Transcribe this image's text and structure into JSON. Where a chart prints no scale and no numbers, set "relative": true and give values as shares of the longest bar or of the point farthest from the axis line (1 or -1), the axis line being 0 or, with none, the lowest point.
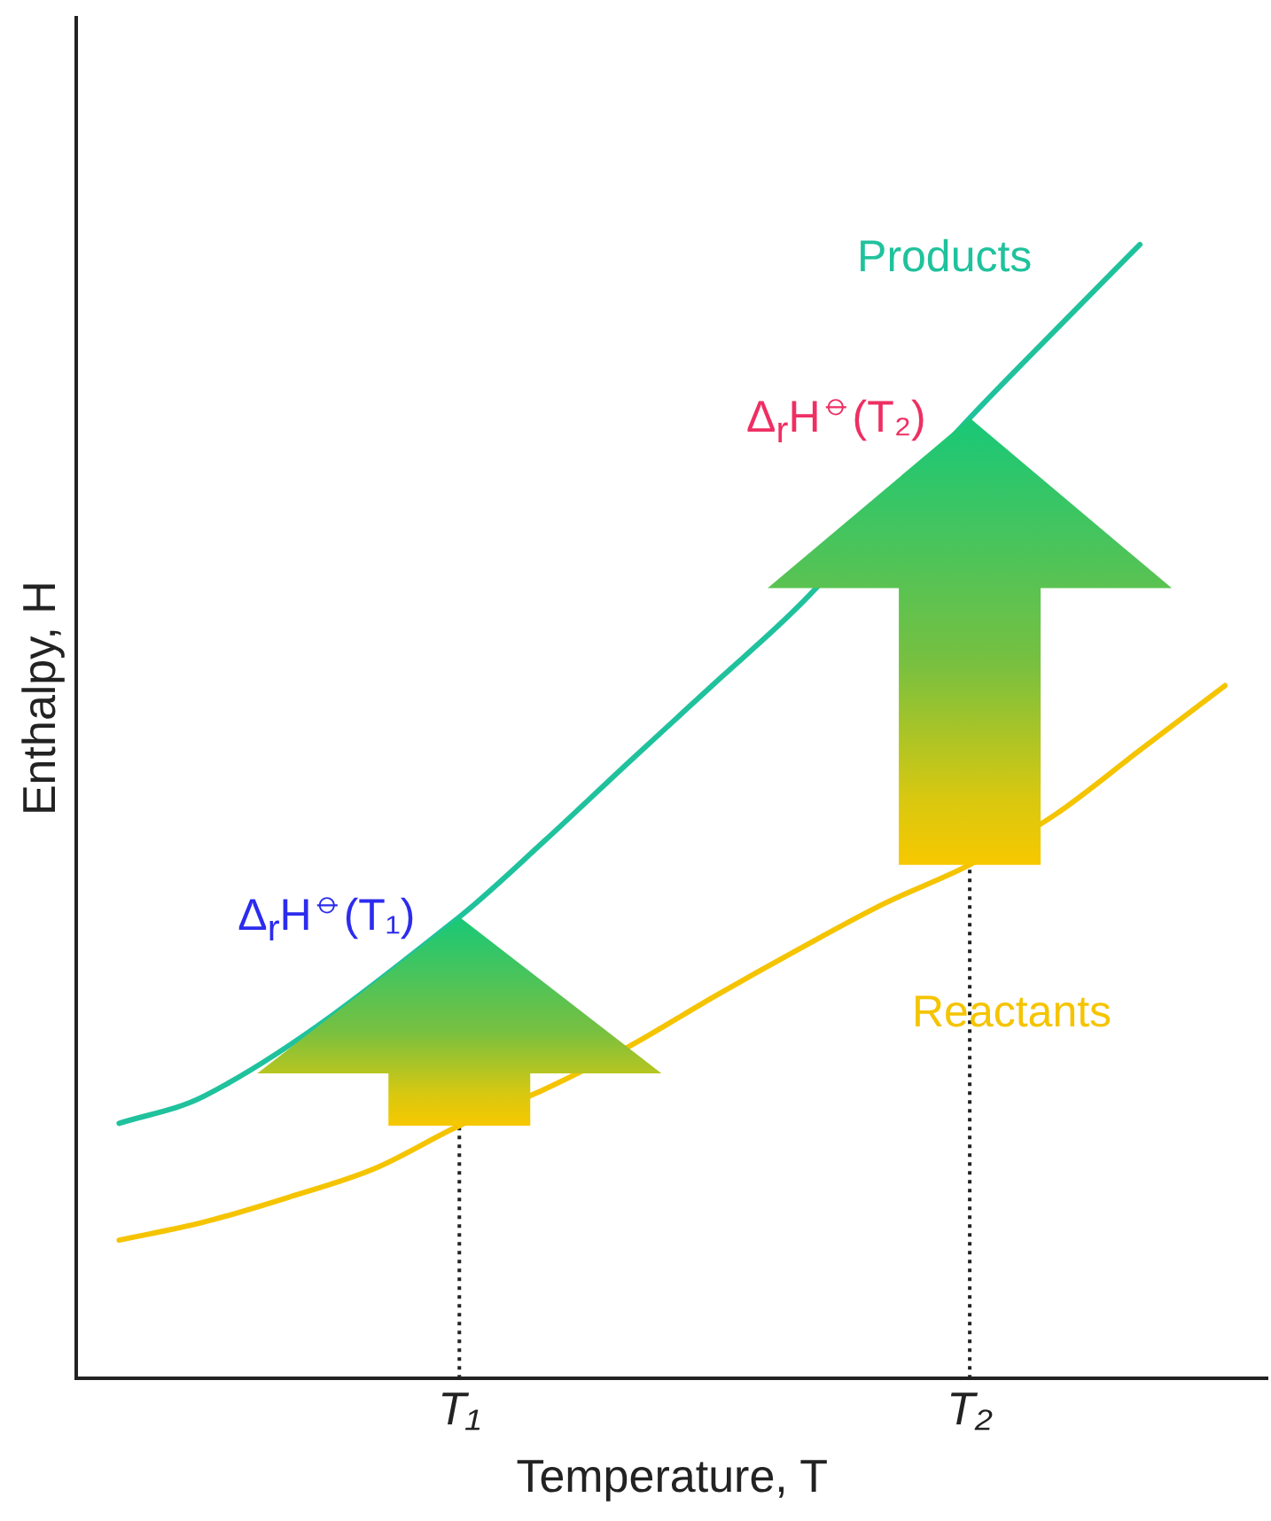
{
  "chart_data": {
    "type": "line",
    "relative": true,
    "xlabel": "Temperature, T",
    "ylabel": "Enthalpy, H",
    "categories": [
      null,
      null,
      null,
      null,
      "T₁",
      null,
      null,
      null,
      null,
      null,
      "T₂",
      null,
      null,
      null
    ],
    "series": [
      {
        "name": "Products",
        "color": "#1fc29c",
        "values": [
          0.225,
          0.249,
          null,
          null,
          0.407,
          0.474,
          0.544,
          0.613,
          0.682,
          null,
          0.847,
          0.924,
          1,
          null
        ]
      },
      {
        "name": "Reactants",
        "color": "#f5c400",
        "values": [
          0.122,
          0.138,
          0.16,
          0.185,
          0.223,
          0.255,
          0.293,
          0.337,
          0.379,
          0.419,
          0.453,
          0.497,
          0.554,
          0.611
        ]
      }
    ],
    "annotations": [
      {
        "text": "Δ$_{r}$H$^{⦵}$(T₁)",
        "x": "T₁",
        "y": 0.407
      },
      {
        "text": "Δ$_{r}$H$^{⦵}$(T₂)",
        "x": "T₂",
        "y": 0.847
      }
    ],
    "ref_lines": [
      {
        "axis": "x",
        "value": "T₁",
        "line_style": "dotted"
      },
      {
        "axis": "x",
        "value": "T₂",
        "line_style": "dotted"
      }
    ],
    "grid": false,
    "legend": false,
    "marker": "none",
    "line_style": "solid"
  }
}
